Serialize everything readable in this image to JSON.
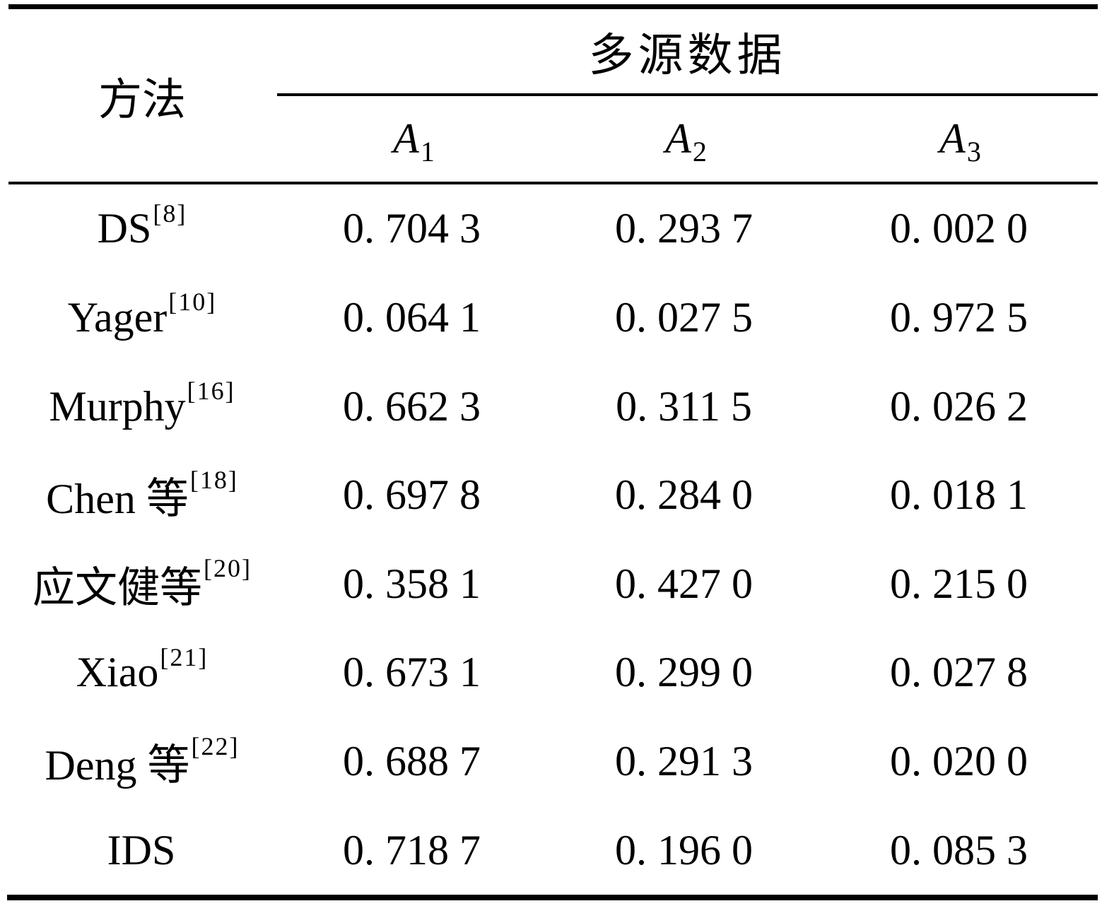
{
  "table": {
    "method_header": "方法",
    "span_header": "多源数据",
    "columns": [
      {
        "base": "A",
        "sub": "1"
      },
      {
        "base": "A",
        "sub": "2"
      },
      {
        "base": "A",
        "sub": "3"
      }
    ],
    "rows": [
      {
        "name": "DS",
        "ref": "[8]",
        "values": [
          "0. 704 3",
          "0. 293 7",
          "0. 002 0"
        ]
      },
      {
        "name": "Yager",
        "ref": "[10]",
        "values": [
          "0. 064 1",
          "0. 027 5",
          "0. 972 5"
        ]
      },
      {
        "name": "Murphy",
        "ref": "[16]",
        "values": [
          "0. 662 3",
          "0. 311 5",
          "0. 026 2"
        ]
      },
      {
        "name": "Chen 等",
        "ref": "[18]",
        "values": [
          "0. 697 8",
          "0. 284 0",
          "0. 018 1"
        ]
      },
      {
        "name": "应文健等",
        "ref": "[20]",
        "values": [
          "0. 358 1",
          "0. 427 0",
          "0. 215 0"
        ]
      },
      {
        "name": "Xiao",
        "ref": "[21]",
        "values": [
          "0. 673 1",
          "0. 299 0",
          "0. 027 8"
        ]
      },
      {
        "name": "Deng 等",
        "ref": "[22]",
        "values": [
          "0. 688 7",
          "0. 291 3",
          "0. 020 0"
        ]
      },
      {
        "name": "IDS",
        "ref": "",
        "values": [
          "0. 718 7",
          "0. 196 0",
          "0. 085 3"
        ]
      }
    ],
    "colors": {
      "text": "#000000",
      "background": "#ffffff",
      "rule": "#000000"
    }
  },
  "chart_data": {
    "type": "table",
    "title": "多源数据",
    "row_header": "方法",
    "columns": [
      "A1",
      "A2",
      "A3"
    ],
    "row_labels": [
      "DS[8]",
      "Yager[10]",
      "Murphy[16]",
      "Chen 等[18]",
      "应文健等[20]",
      "Xiao[21]",
      "Deng 等[22]",
      "IDS"
    ],
    "values": [
      [
        0.7043,
        0.2937,
        0.002
      ],
      [
        0.0641,
        0.0275,
        0.9725
      ],
      [
        0.6623,
        0.3115,
        0.0262
      ],
      [
        0.6978,
        0.284,
        0.0181
      ],
      [
        0.3581,
        0.427,
        0.215
      ],
      [
        0.6731,
        0.299,
        0.0278
      ],
      [
        0.6887,
        0.2913,
        0.02
      ],
      [
        0.7187,
        0.196,
        0.0853
      ]
    ]
  }
}
